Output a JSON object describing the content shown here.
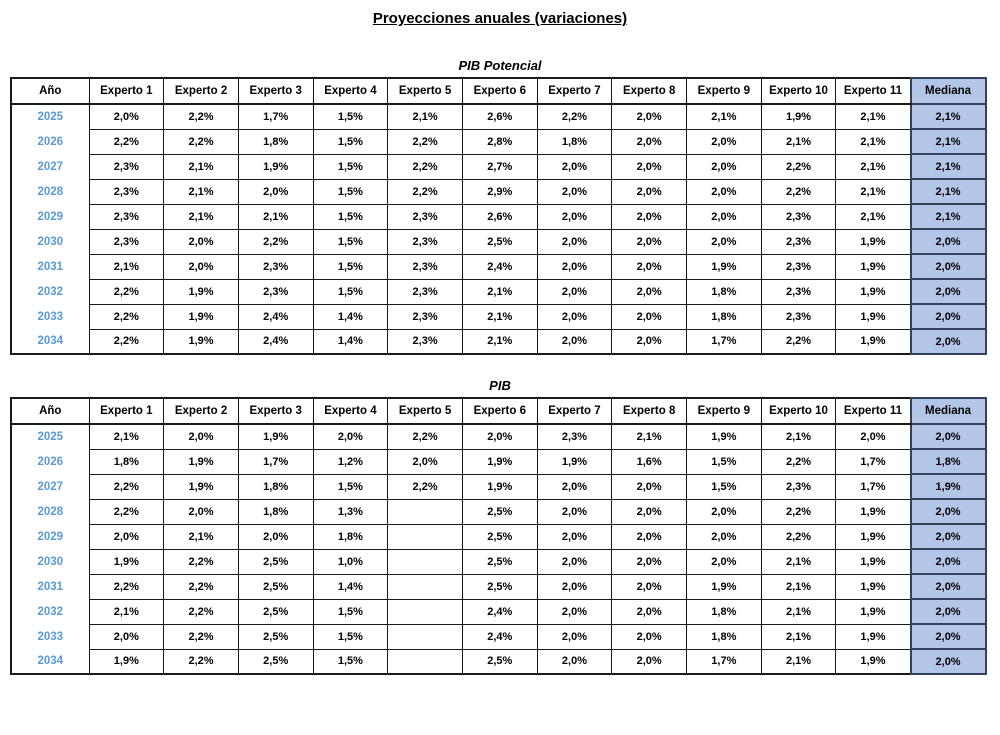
{
  "page_title": "Proyecciones anuales (variaciones)",
  "colors": {
    "border": "#1a1a1a",
    "mediana_border": "#33425b",
    "year_text": "#5B9BD5",
    "mediana_fill": "#B4C6E7"
  },
  "tables": [
    {
      "title": "PIB Potencial",
      "headers": [
        "Año",
        "Experto 1",
        "Experto 2",
        "Experto 3",
        "Experto 4",
        "Experto 5",
        "Experto 6",
        "Experto 7",
        "Experto 8",
        "Experto 9",
        "Experto 10",
        "Experto 11",
        "Mediana"
      ],
      "rows": [
        {
          "year": "2025",
          "values": [
            "2,0%",
            "2,2%",
            "1,7%",
            "1,5%",
            "2,1%",
            "2,6%",
            "2,2%",
            "2,0%",
            "2,1%",
            "1,9%",
            "2,1%"
          ],
          "mediana": "2,1%"
        },
        {
          "year": "2026",
          "values": [
            "2,2%",
            "2,2%",
            "1,8%",
            "1,5%",
            "2,2%",
            "2,8%",
            "1,8%",
            "2,0%",
            "2,0%",
            "2,1%",
            "2,1%"
          ],
          "mediana": "2,1%"
        },
        {
          "year": "2027",
          "values": [
            "2,3%",
            "2,1%",
            "1,9%",
            "1,5%",
            "2,2%",
            "2,7%",
            "2,0%",
            "2,0%",
            "2,0%",
            "2,2%",
            "2,1%"
          ],
          "mediana": "2,1%"
        },
        {
          "year": "2028",
          "values": [
            "2,3%",
            "2,1%",
            "2,0%",
            "1,5%",
            "2,2%",
            "2,9%",
            "2,0%",
            "2,0%",
            "2,0%",
            "2,2%",
            "2,1%"
          ],
          "mediana": "2,1%"
        },
        {
          "year": "2029",
          "values": [
            "2,3%",
            "2,1%",
            "2,1%",
            "1,5%",
            "2,3%",
            "2,6%",
            "2,0%",
            "2,0%",
            "2,0%",
            "2,3%",
            "2,1%"
          ],
          "mediana": "2,1%"
        },
        {
          "year": "2030",
          "values": [
            "2,3%",
            "2,0%",
            "2,2%",
            "1,5%",
            "2,3%",
            "2,5%",
            "2,0%",
            "2,0%",
            "2,0%",
            "2,3%",
            "1,9%"
          ],
          "mediana": "2,0%"
        },
        {
          "year": "2031",
          "values": [
            "2,1%",
            "2,0%",
            "2,3%",
            "1,5%",
            "2,3%",
            "2,4%",
            "2,0%",
            "2,0%",
            "1,9%",
            "2,3%",
            "1,9%"
          ],
          "mediana": "2,0%"
        },
        {
          "year": "2032",
          "values": [
            "2,2%",
            "1,9%",
            "2,3%",
            "1,5%",
            "2,3%",
            "2,1%",
            "2,0%",
            "2,0%",
            "1,8%",
            "2,3%",
            "1,9%"
          ],
          "mediana": "2,0%"
        },
        {
          "year": "2033",
          "values": [
            "2,2%",
            "1,9%",
            "2,4%",
            "1,4%",
            "2,3%",
            "2,1%",
            "2,0%",
            "2,0%",
            "1,8%",
            "2,3%",
            "1,9%"
          ],
          "mediana": "2,0%"
        },
        {
          "year": "2034",
          "values": [
            "2,2%",
            "1,9%",
            "2,4%",
            "1,4%",
            "2,3%",
            "2,1%",
            "2,0%",
            "2,0%",
            "1,7%",
            "2,2%",
            "1,9%"
          ],
          "mediana": "2,0%"
        }
      ]
    },
    {
      "title": "PIB",
      "headers": [
        "Año",
        "Experto 1",
        "Experto 2",
        "Experto 3",
        "Experto 4",
        "Experto 5",
        "Experto 6",
        "Experto 7",
        "Experto 8",
        "Experto 9",
        "Experto 10",
        "Experto 11",
        "Mediana"
      ],
      "rows": [
        {
          "year": "2025",
          "values": [
            "2,1%",
            "2,0%",
            "1,9%",
            "2,0%",
            "2,2%",
            "2,0%",
            "2,3%",
            "2,1%",
            "1,9%",
            "2,1%",
            "2,0%"
          ],
          "mediana": "2,0%"
        },
        {
          "year": "2026",
          "values": [
            "1,8%",
            "1,9%",
            "1,7%",
            "1,2%",
            "2,0%",
            "1,9%",
            "1,9%",
            "1,6%",
            "1,5%",
            "2,2%",
            "1,7%"
          ],
          "mediana": "1,8%"
        },
        {
          "year": "2027",
          "values": [
            "2,2%",
            "1,9%",
            "1,8%",
            "1,5%",
            "2,2%",
            "1,9%",
            "2,0%",
            "2,0%",
            "1,5%",
            "2,3%",
            "1,7%"
          ],
          "mediana": "1,9%"
        },
        {
          "year": "2028",
          "values": [
            "2,2%",
            "2,0%",
            "1,8%",
            "1,3%",
            "",
            "2,5%",
            "2,0%",
            "2,0%",
            "2,0%",
            "2,2%",
            "1,9%"
          ],
          "mediana": "2,0%"
        },
        {
          "year": "2029",
          "values": [
            "2,0%",
            "2,1%",
            "2,0%",
            "1,8%",
            "",
            "2,5%",
            "2,0%",
            "2,0%",
            "2,0%",
            "2,2%",
            "1,9%"
          ],
          "mediana": "2,0%"
        },
        {
          "year": "2030",
          "values": [
            "1,9%",
            "2,2%",
            "2,5%",
            "1,0%",
            "",
            "2,5%",
            "2,0%",
            "2,0%",
            "2,0%",
            "2,1%",
            "1,9%"
          ],
          "mediana": "2,0%"
        },
        {
          "year": "2031",
          "values": [
            "2,2%",
            "2,2%",
            "2,5%",
            "1,4%",
            "",
            "2,5%",
            "2,0%",
            "2,0%",
            "1,9%",
            "2,1%",
            "1,9%"
          ],
          "mediana": "2,0%"
        },
        {
          "year": "2032",
          "values": [
            "2,1%",
            "2,2%",
            "2,5%",
            "1,5%",
            "",
            "2,4%",
            "2,0%",
            "2,0%",
            "1,8%",
            "2,1%",
            "1,9%"
          ],
          "mediana": "2,0%"
        },
        {
          "year": "2033",
          "values": [
            "2,0%",
            "2,2%",
            "2,5%",
            "1,5%",
            "",
            "2,4%",
            "2,0%",
            "2,0%",
            "1,8%",
            "2,1%",
            "1,9%"
          ],
          "mediana": "2,0%"
        },
        {
          "year": "2034",
          "values": [
            "1,9%",
            "2,2%",
            "2,5%",
            "1,5%",
            "",
            "2,5%",
            "2,0%",
            "2,0%",
            "1,7%",
            "2,1%",
            "1,9%"
          ],
          "mediana": "2,0%"
        }
      ]
    }
  ]
}
